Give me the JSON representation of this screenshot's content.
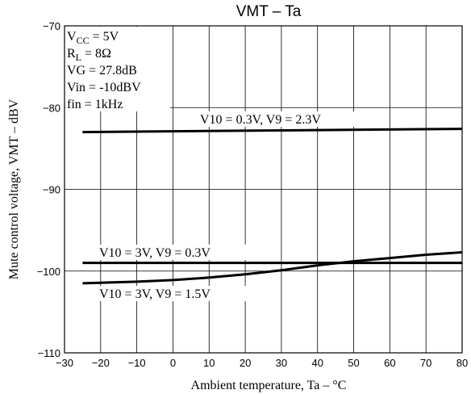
{
  "chart_data": {
    "type": "line",
    "title": "VMT  –  Ta",
    "xlabel": "Ambient temperature, Ta  –  °C",
    "ylabel": "Mute control voltage, VMT  –  dBV",
    "xlim": [
      -30,
      80
    ],
    "ylim": [
      -110,
      -70
    ],
    "x_ticks": [
      -30,
      -20,
      -10,
      0,
      10,
      20,
      30,
      40,
      50,
      60,
      70,
      80
    ],
    "y_ticks": [
      -110,
      -100,
      -90,
      -80,
      -70
    ],
    "grid": true,
    "conditions": [
      {
        "id": "vcc",
        "main": "V",
        "sub": "CC",
        "rest": " = 5V"
      },
      {
        "id": "rl",
        "main": "R",
        "sub": "L",
        "rest": " = 8Ω"
      },
      {
        "id": "vg",
        "main": "VG = 27.8dB",
        "sub": "",
        "rest": ""
      },
      {
        "id": "vin",
        "main": "Vin = -10dBV",
        "sub": "",
        "rest": ""
      },
      {
        "id": "fin",
        "main": "fin = 1kHz",
        "sub": "",
        "rest": ""
      }
    ],
    "series": [
      {
        "label": "V10 = 0.3V, V9 = 2.3V",
        "x": [
          -25,
          80
        ],
        "y": [
          -83.0,
          -82.6
        ]
      },
      {
        "label": "V10 = 3V, V9 = 0.3V",
        "x": [
          -25,
          80
        ],
        "y": [
          -99.0,
          -99.0
        ]
      },
      {
        "label": "V10 = 3V, V9 = 1.5V",
        "x": [
          -25,
          -10,
          0,
          10,
          20,
          30,
          40,
          50,
          60,
          70,
          80
        ],
        "y": [
          -101.5,
          -101.3,
          -101.1,
          -100.8,
          -100.4,
          -99.9,
          -99.3,
          -98.8,
          -98.4,
          -98.0,
          -97.7
        ]
      }
    ]
  }
}
